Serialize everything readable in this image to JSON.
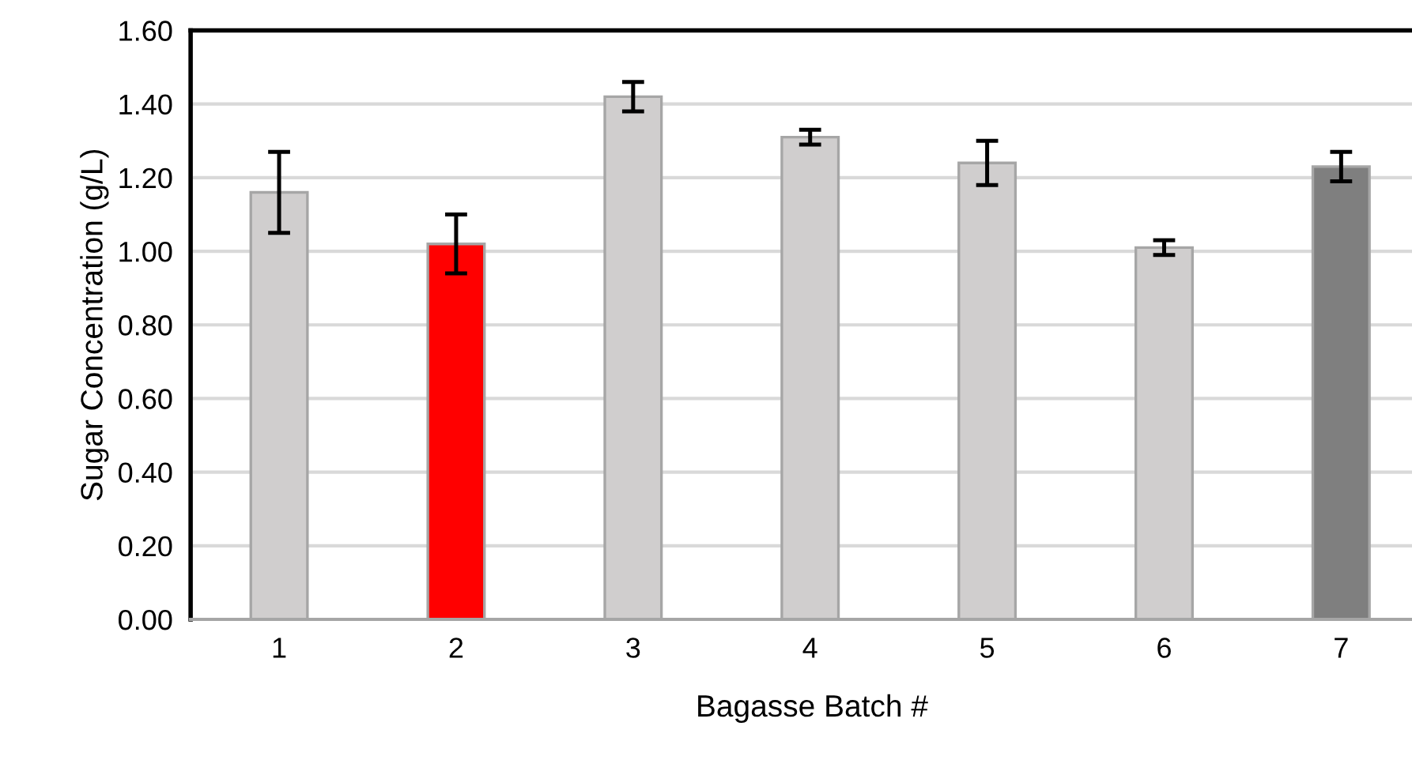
{
  "chart_data": {
    "type": "bar",
    "xlabel": "Bagasse Batch #",
    "ylabel": "Sugar Concentration (g/L)",
    "categories": [
      "1",
      "2",
      "3",
      "4",
      "5",
      "6",
      "7"
    ],
    "values": [
      1.16,
      1.02,
      1.42,
      1.31,
      1.24,
      1.01,
      1.23
    ],
    "errors": [
      0.11,
      0.08,
      0.04,
      0.02,
      0.06,
      0.02,
      0.04
    ],
    "colors": [
      "#d0cece",
      "#ff0000",
      "#d0cece",
      "#d0cece",
      "#d0cece",
      "#d0cece",
      "#7f7f7f"
    ],
    "ylim": [
      0,
      1.6
    ],
    "yticks": [
      {
        "value": 0,
        "label": "0.00"
      },
      {
        "value": 0.2,
        "label": "0.20"
      },
      {
        "value": 0.4,
        "label": "0.40"
      },
      {
        "value": 0.6,
        "label": "0.60"
      },
      {
        "value": 0.8,
        "label": "0.80"
      },
      {
        "value": 1.0,
        "label": "1.00"
      },
      {
        "value": 1.2,
        "label": "1.20"
      },
      {
        "value": 1.4,
        "label": "1.40"
      },
      {
        "value": 1.6,
        "label": "1.60"
      }
    ],
    "grid": "y",
    "legend": false
  }
}
